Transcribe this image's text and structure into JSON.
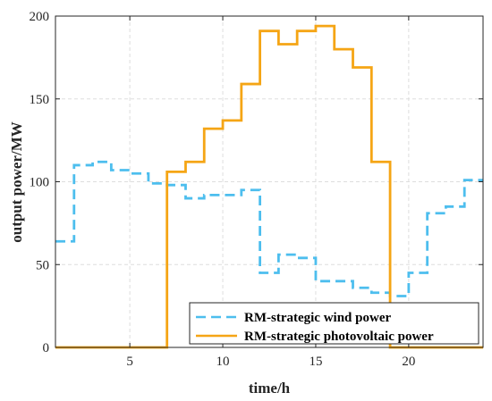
{
  "chart_data": {
    "type": "line",
    "title": "",
    "xlabel": "time/h",
    "ylabel": "output power/MW",
    "xlim": [
      1,
      24
    ],
    "ylim": [
      0,
      200
    ],
    "xticks": [
      5,
      10,
      15,
      20
    ],
    "yticks": [
      0,
      50,
      100,
      150,
      200
    ],
    "grid": true,
    "legend_position": "bottom-right",
    "x": [
      1,
      2,
      3,
      4,
      5,
      6,
      7,
      8,
      9,
      10,
      11,
      12,
      13,
      14,
      15,
      16,
      17,
      18,
      19,
      20,
      21,
      22,
      23,
      24
    ],
    "series": [
      {
        "name": "RM-strategic wind power",
        "style": "dashed-step",
        "color": "#4DBEEE",
        "values": [
          64,
          110,
          112,
          107,
          105,
          99,
          98,
          90,
          92,
          92,
          95,
          45,
          56,
          54,
          40,
          40,
          36,
          33,
          31,
          45,
          81,
          85,
          101,
          101
        ]
      },
      {
        "name": "RM-strategic photovoltaic power",
        "style": "solid-step",
        "color": "#F5A515",
        "values": [
          0,
          0,
          0,
          0,
          0,
          0,
          106,
          112,
          132,
          137,
          159,
          191,
          183,
          191,
          194,
          180,
          169,
          112,
          0,
          0,
          0,
          0,
          0,
          0
        ]
      }
    ]
  }
}
